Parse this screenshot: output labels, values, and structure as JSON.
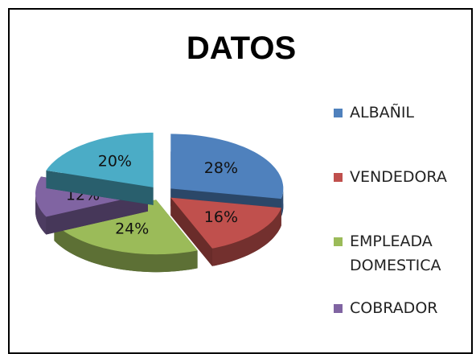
{
  "chart_data": {
    "type": "pie",
    "title": "DATOS",
    "categories": [
      "ALBAÑIL",
      "VENDEDORA",
      "EMPLEADA DOMESTICA",
      "COBRADOR",
      null
    ],
    "values": [
      28,
      16,
      24,
      12,
      20
    ],
    "value_labels": [
      "28%",
      "16%",
      "24%",
      "12%",
      "20%"
    ],
    "colors": [
      "#4f81bd",
      "#c0504d",
      "#9bbb59",
      "#8064a2",
      "#4bacc6"
    ],
    "legend": "right"
  }
}
